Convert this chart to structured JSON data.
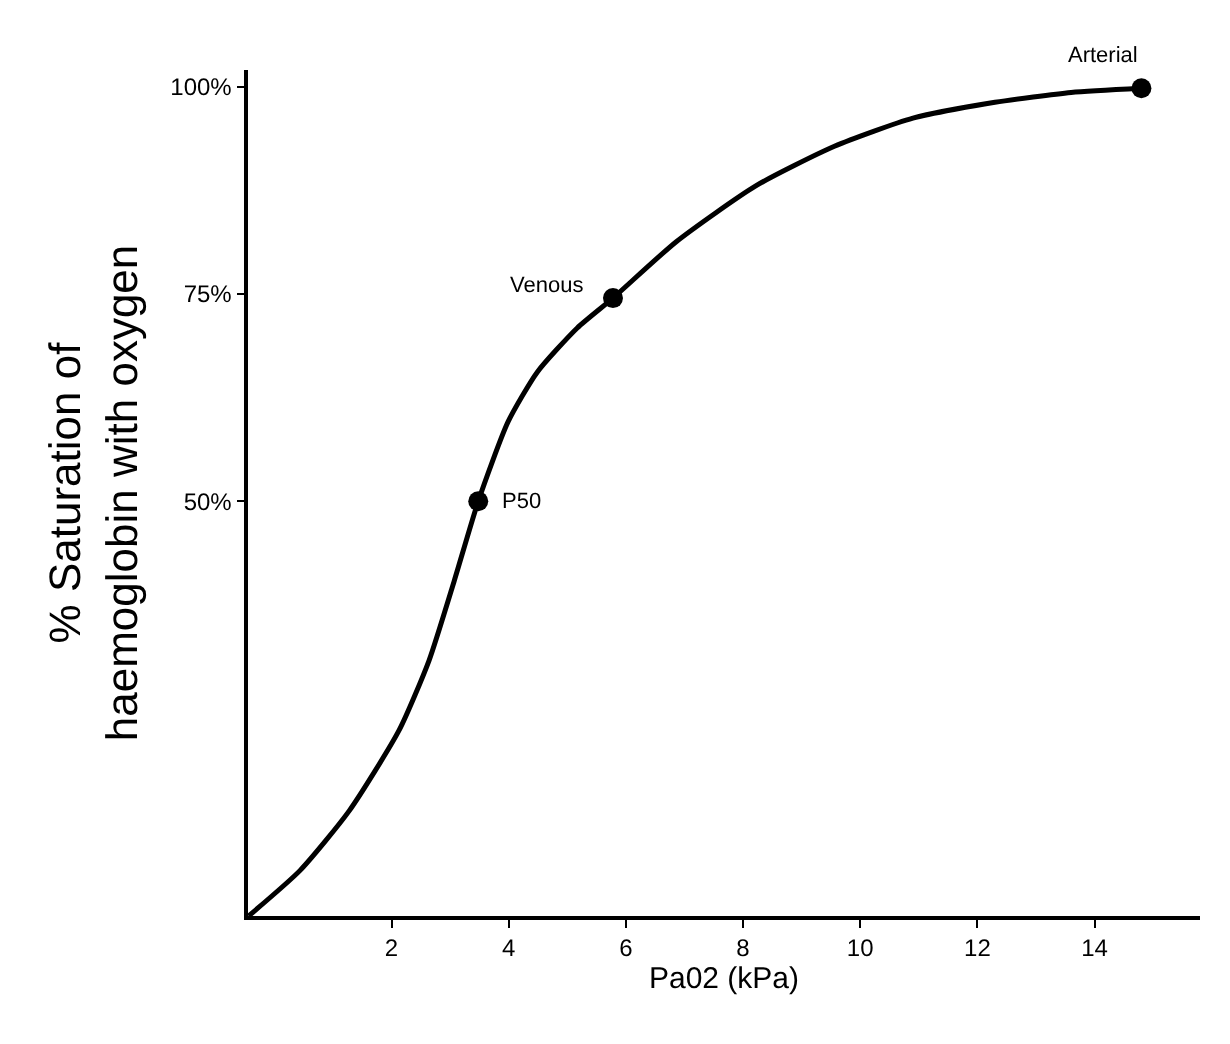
{
  "chart_data": {
    "type": "line",
    "xlabel": "Pa02 (kPa)",
    "ylabel": "% Saturation of\nhaemoglobin with oxygen",
    "xlim": [
      -0.45,
      15.8
    ],
    "xticks": [
      2,
      4,
      6,
      8,
      10,
      12,
      14
    ],
    "ylim": [
      0,
      102
    ],
    "yticks": [
      {
        "value": 50,
        "label": "50%"
      },
      {
        "value": 75,
        "label": "75%"
      },
      {
        "value": 100,
        "label": "100%"
      }
    ],
    "series": [
      {
        "color": "#000000",
        "marker": "none",
        "line_style": "solid",
        "x": [
          -0.44,
          0.44,
          1.28,
          2.13,
          2.64,
          3.07,
          3.48,
          3.99,
          4.49,
          5.17,
          5.78,
          6.86,
          8.21,
          9.56,
          10.9,
          12.3,
          13.6,
          14.8
        ],
        "values": [
          0,
          5.5,
          12.7,
          22.4,
          30.8,
          40.4,
          50,
          59.6,
          65.6,
          70.9,
          74.5,
          81.3,
          88,
          92.8,
          96.2,
          98.1,
          99.3,
          99.8
        ]
      },
      {
        "type": "scatter",
        "color": "#000000",
        "marker": "circle",
        "x": [
          3.48,
          5.78,
          14.8
        ],
        "values": [
          50,
          74.5,
          99.8
        ]
      }
    ],
    "annotations": [
      {
        "text": "P50",
        "x": 3.48,
        "y": 50
      },
      {
        "text": "Venous",
        "x": 5.78,
        "y": 74.5
      },
      {
        "text": "Arterial",
        "x": 14.8,
        "y": 99.8
      }
    ]
  }
}
